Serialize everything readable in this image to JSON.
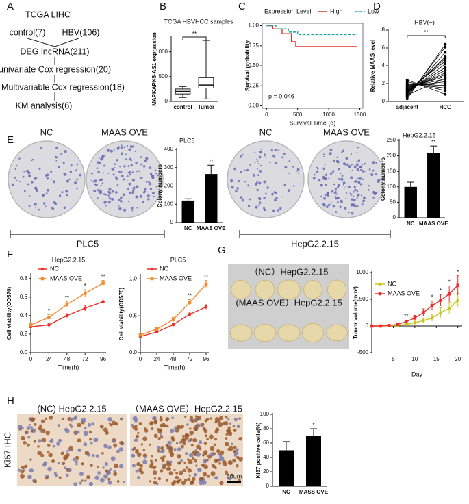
{
  "panel_labels": [
    "A",
    "B",
    "C",
    "D",
    "E",
    "F",
    "G",
    "H"
  ],
  "flowchart": {
    "title": "TCGA LIHC",
    "branches": [
      "control(7)",
      "HBV(106)"
    ],
    "steps": [
      "DEG lncRNA(211)",
      "univariate Cox regression(20)",
      "Multivariable Cox regression(18)",
      "KM analysis(6)"
    ]
  },
  "images": {
    "e_dish_labels": [
      "NC",
      "MAAS OVE",
      "NC",
      "MAAS OVE"
    ],
    "e_groups": [
      "PLC5",
      "HepG2.2.15"
    ],
    "g_labels": [
      "（NC）HepG2.2.15",
      "(MAAS OVE）HepG2.2.15"
    ],
    "h_labels": [
      "(NC) HepG2.2.15",
      "（MAAS OVE）HepG2.2.15"
    ],
    "h_side": "Ki67 IHC",
    "scale_bar": "50um"
  },
  "chart_data": [
    {
      "type": "box",
      "title": "TCGA HBVHCC  samples",
      "y_label": "MAPKAPK5-AS1 expression",
      "categories": [
        "control",
        "Tumor"
      ],
      "boxes": [
        {
          "min": 80,
          "q1": 150,
          "median": 200,
          "q3": 250,
          "max": 300
        },
        {
          "min": 50,
          "q1": 270,
          "median": 330,
          "q3": 480,
          "max": 1230
        }
      ],
      "ylim": [
        0,
        1300
      ],
      "yticks": [
        0,
        500,
        1000
      ],
      "annotation": "**"
    },
    {
      "type": "line",
      "legend_title": "Expression Level",
      "x_label": "Survival Time (d)",
      "y_label": "Survival probability",
      "series": [
        {
          "name": "High",
          "color": "#e8302a",
          "x": [
            0,
            100,
            100,
            250,
            250,
            400,
            400,
            470,
            470,
            1450
          ],
          "values": [
            1,
            1,
            0.96,
            0.96,
            0.9,
            0.9,
            0.8,
            0.8,
            0.74,
            0.74
          ]
        },
        {
          "name": "Low",
          "color": "#1aa39a",
          "dashed": true,
          "x": [
            0,
            150,
            150,
            350,
            350,
            500,
            500,
            1450
          ],
          "values": [
            1,
            1,
            0.96,
            0.96,
            0.92,
            0.92,
            0.89,
            0.89
          ]
        }
      ],
      "xlim": [
        -70,
        1550
      ],
      "xticks": [
        0,
        500,
        1000,
        1500
      ],
      "ylim": [
        -0.03,
        1.03
      ],
      "yticks": [
        {
          "value": 0,
          "label": "0.00"
        },
        0.25,
        {
          "value": 0.5,
          "label": "0.50"
        },
        0.75,
        {
          "value": 1,
          "label": "1.00"
        }
      ],
      "annotation": "p = 0.046",
      "frame": true
    },
    {
      "type": "paired",
      "title": "HBV(+)",
      "y_label": "Relative MAAS level",
      "categories": [
        "adjacent",
        "HCC"
      ],
      "values": [
        [
          0.3,
          0.5,
          0.6,
          0.8,
          0.9,
          1.0,
          1.1,
          1.2,
          1.3,
          1.4,
          1.5,
          1.6,
          1.7,
          1.8,
          1.9,
          2.0,
          2.2,
          2.4,
          0.7,
          1.2
        ],
        [
          6.4,
          6.1,
          5.5,
          5.0,
          4.8,
          4.2,
          3.8,
          3.5,
          3.2,
          3.0,
          2.8,
          2.5,
          2.2,
          2.0,
          1.8,
          1.5,
          1.2,
          0.8,
          2.6,
          4.5
        ]
      ],
      "ylim": [
        0,
        8
      ],
      "yticks": [
        0,
        2,
        4,
        6,
        8
      ],
      "annotation": "**",
      "color": "#000000"
    },
    {
      "type": "bar",
      "title": "PLC5",
      "y_label": "Colony numbers",
      "categories": [
        "NC",
        "MAAS OVE"
      ],
      "values": [
        120,
        265
      ],
      "errors": [
        10,
        48
      ],
      "color": "#000000",
      "ylim": [
        0,
        400
      ],
      "yticks": [
        0,
        100,
        200,
        300,
        400
      ],
      "annotations": [
        {
          "x": "MAAS OVE",
          "text": "**"
        }
      ]
    },
    {
      "type": "bar",
      "title": "HepG2.2.15",
      "y_label": "Colony numbers",
      "categories": [
        "NC",
        "MAAS OVE"
      ],
      "values": [
        100,
        210
      ],
      "errors": [
        15,
        22
      ],
      "color": "#000000",
      "ylim": [
        0,
        250
      ],
      "yticks": [
        0,
        50,
        100,
        150,
        200,
        250
      ],
      "annotations": [
        {
          "x": "MAAS OVE",
          "text": "**"
        }
      ]
    },
    {
      "type": "line",
      "title": "HepG2.2.15",
      "x_label": "Time(h)",
      "y_label": "Cell viability(OD570)",
      "x": [
        0,
        24,
        48,
        72,
        96
      ],
      "series": [
        {
          "name": "NC",
          "color": "#e8302a",
          "marker": "circle",
          "values": [
            0.28,
            0.3,
            0.4,
            0.48,
            0.55
          ],
          "errors": [
            0.02,
            0.02,
            0.02,
            0.03,
            0.03
          ]
        },
        {
          "name": "MAAS OVE",
          "color": "#f28a2e",
          "marker": "square",
          "values": [
            0.3,
            0.38,
            0.52,
            0.64,
            0.75
          ],
          "errors": [
            0.02,
            0.03,
            0.03,
            0.04,
            0.03
          ]
        }
      ],
      "xlim": [
        0,
        100
      ],
      "xticks": [
        0,
        24,
        48,
        72,
        96
      ],
      "ylim": [
        0,
        0.85
      ],
      "yticks": [
        {
          "value": 0,
          "label": "0.0"
        },
        0.2,
        0.4,
        0.6,
        0.8
      ],
      "annotations": [
        {
          "x": 24,
          "text": "*"
        },
        {
          "x": 48,
          "text": "**"
        },
        {
          "x": 72,
          "text": "*"
        },
        {
          "x": 96,
          "text": "**"
        }
      ]
    },
    {
      "type": "line",
      "title": "PLC5",
      "x_label": "Time(h)",
      "y_label": "Cell viability(OD570)",
      "x": [
        0,
        24,
        48,
        72,
        96
      ],
      "series": [
        {
          "name": "NC",
          "color": "#e8302a",
          "marker": "circle",
          "values": [
            0.22,
            0.28,
            0.38,
            0.52,
            0.62
          ],
          "errors": [
            0.02,
            0.02,
            0.02,
            0.03,
            0.03
          ]
        },
        {
          "name": "MAAS OVE",
          "color": "#f28a2e",
          "marker": "square",
          "values": [
            0.24,
            0.32,
            0.45,
            0.68,
            0.93
          ],
          "errors": [
            0.02,
            0.02,
            0.03,
            0.04,
            0.05
          ]
        }
      ],
      "xlim": [
        0,
        100
      ],
      "xticks": [
        0,
        24,
        48,
        72,
        96
      ],
      "ylim": [
        0,
        1.05
      ],
      "yticks": [
        {
          "value": 0,
          "label": "0.0"
        },
        0.5,
        {
          "value": 1,
          "label": "1.0"
        }
      ],
      "annotations": [
        {
          "x": 72,
          "text": "**"
        },
        {
          "x": 96,
          "text": "**"
        }
      ]
    },
    {
      "type": "line",
      "x_label": "Day",
      "y_label": "Tumor volume(mm³)",
      "x": [
        0,
        2,
        4,
        6,
        8,
        10,
        12,
        14,
        16,
        18,
        20
      ],
      "series": [
        {
          "name": "NC",
          "color": "#c8c81e",
          "marker": "circle",
          "values": [
            0,
            0,
            5,
            10,
            30,
            60,
            100,
            150,
            250,
            330,
            480
          ],
          "errors": [
            0,
            0,
            5,
            10,
            20,
            30,
            40,
            60,
            90,
            110,
            130
          ]
        },
        {
          "name": "MAAS OVE",
          "color": "#e8302a",
          "marker": "square",
          "values": [
            0,
            0,
            10,
            30,
            80,
            150,
            250,
            380,
            480,
            600,
            760
          ],
          "errors": [
            0,
            0,
            10,
            15,
            30,
            50,
            70,
            90,
            110,
            150,
            180
          ]
        }
      ],
      "xlim": [
        0,
        21
      ],
      "xticks": [
        5,
        10,
        15,
        20
      ],
      "ylim": [
        -500,
        1000
      ],
      "yticks": [
        -500,
        0,
        500,
        1000
      ],
      "annotations": [
        {
          "x": 8,
          "text": "**"
        },
        {
          "x": 14,
          "text": "*"
        },
        {
          "x": 16,
          "text": "*"
        },
        {
          "x": 18,
          "text": "*"
        },
        {
          "x": 20,
          "text": "*"
        }
      ]
    },
    {
      "type": "bar",
      "y_label": "Ki67 positive cells(%)",
      "categories": [
        "NC",
        "MASS OVE"
      ],
      "values": [
        50,
        70
      ],
      "errors": [
        12,
        10
      ],
      "color": "#000000",
      "ylim": [
        0,
        100
      ],
      "yticks": [
        0,
        20,
        40,
        60,
        80,
        100
      ],
      "annotations": [
        {
          "x": "MASS OVE",
          "text": "*"
        }
      ]
    }
  ]
}
